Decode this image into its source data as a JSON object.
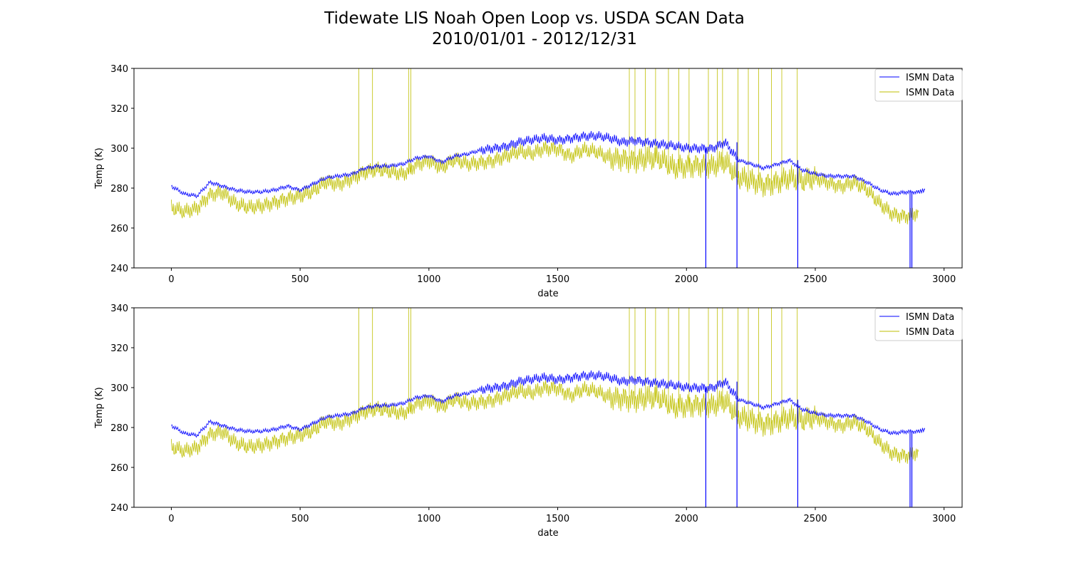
{
  "figure": {
    "title_line1": "Tidewate LIS Noah Open Loop vs. USDA SCAN Data",
    "title_line2": "2010/01/01 - 2012/12/31"
  },
  "colors": {
    "series1": "#0000ff",
    "series2": "#bfbf00"
  },
  "chart_data": [
    {
      "type": "line",
      "title": "",
      "xlabel": "date",
      "ylabel": "Temp (K)",
      "xlim": [
        -145,
        3070
      ],
      "ylim": [
        240,
        340
      ],
      "xticks": [
        0,
        500,
        1000,
        1500,
        2000,
        2500,
        3000
      ],
      "yticks": [
        240,
        260,
        280,
        300,
        320,
        340
      ],
      "legend": {
        "placement": "top-right"
      },
      "series": [
        {
          "name": "ISMN Data",
          "color": "#0000ff",
          "x": [
            0,
            50,
            100,
            150,
            200,
            250,
            300,
            350,
            400,
            450,
            500,
            550,
            600,
            650,
            700,
            750,
            800,
            850,
            900,
            950,
            1000,
            1050,
            1100,
            1150,
            1200,
            1250,
            1300,
            1350,
            1400,
            1450,
            1500,
            1550,
            1600,
            1650,
            1700,
            1750,
            1800,
            1850,
            1900,
            1950,
            2000,
            2050,
            2100,
            2150,
            2200,
            2250,
            2300,
            2350,
            2400,
            2450,
            2500,
            2550,
            2600,
            2650,
            2700,
            2750,
            2800,
            2850,
            2900,
            2925
          ],
          "y": [
            281,
            277,
            276,
            283,
            281,
            279,
            278,
            278,
            279,
            281,
            279,
            282,
            285,
            286,
            287,
            290,
            291,
            291,
            292,
            295,
            296,
            293,
            296,
            297,
            299,
            300,
            301,
            303,
            304,
            305,
            304,
            305,
            306,
            306,
            305,
            303,
            304,
            303,
            302,
            301,
            300,
            300,
            300,
            303,
            294,
            292,
            290,
            292,
            294,
            289,
            287,
            286,
            286,
            286,
            283,
            279,
            277,
            278,
            278,
            279
          ],
          "dropouts": [
            2075,
            2196,
            2432,
            2868,
            2875
          ]
        },
        {
          "name": "ISMN Data",
          "color": "#bfbf00",
          "x": [
            0,
            50,
            100,
            150,
            200,
            250,
            300,
            350,
            400,
            450,
            500,
            550,
            600,
            650,
            700,
            750,
            800,
            850,
            900,
            950,
            1000,
            1050,
            1100,
            1150,
            1200,
            1250,
            1300,
            1350,
            1400,
            1450,
            1500,
            1550,
            1600,
            1650,
            1700,
            1750,
            1800,
            1850,
            1900,
            1950,
            2000,
            2050,
            2100,
            2150,
            2200,
            2250,
            2300,
            2350,
            2400,
            2450,
            2500,
            2550,
            2600,
            2650,
            2700,
            2750,
            2800,
            2850,
            2900
          ],
          "y": [
            270,
            268,
            270,
            277,
            278,
            272,
            270,
            271,
            273,
            275,
            276,
            278,
            283,
            282,
            285,
            288,
            289,
            288,
            287,
            292,
            294,
            290,
            294,
            292,
            293,
            294,
            296,
            298,
            297,
            300,
            300,
            296,
            299,
            298,
            295,
            295,
            294,
            295,
            294,
            290,
            291,
            292,
            291,
            293,
            285,
            284,
            282,
            283,
            285,
            283,
            285,
            283,
            281,
            283,
            279,
            272,
            267,
            266,
            268
          ],
          "spikes_to_top": [
            728,
            781,
            922,
            930,
            1778,
            1800,
            1840,
            1880,
            1930,
            1970,
            2010,
            2085,
            2120,
            2140,
            2200,
            2240,
            2280,
            2330,
            2370,
            2430
          ]
        }
      ]
    },
    {
      "type": "line",
      "title": "",
      "xlabel": "date",
      "ylabel": "Temp (K)",
      "xlim": [
        -145,
        3070
      ],
      "ylim": [
        240,
        340
      ],
      "xticks": [
        0,
        500,
        1000,
        1500,
        2000,
        2500,
        3000
      ],
      "yticks": [
        240,
        260,
        280,
        300,
        320,
        340
      ],
      "legend": {
        "placement": "top-right"
      },
      "series": [
        {
          "name": "ISMN Data",
          "color": "#0000ff",
          "x": [
            0,
            50,
            100,
            150,
            200,
            250,
            300,
            350,
            400,
            450,
            500,
            550,
            600,
            650,
            700,
            750,
            800,
            850,
            900,
            950,
            1000,
            1050,
            1100,
            1150,
            1200,
            1250,
            1300,
            1350,
            1400,
            1450,
            1500,
            1550,
            1600,
            1650,
            1700,
            1750,
            1800,
            1850,
            1900,
            1950,
            2000,
            2050,
            2100,
            2150,
            2200,
            2250,
            2300,
            2350,
            2400,
            2450,
            2500,
            2550,
            2600,
            2650,
            2700,
            2750,
            2800,
            2850,
            2900,
            2925
          ],
          "y": [
            281,
            277,
            276,
            283,
            281,
            279,
            278,
            278,
            279,
            281,
            279,
            282,
            285,
            286,
            287,
            290,
            291,
            291,
            292,
            295,
            296,
            293,
            296,
            297,
            299,
            300,
            301,
            303,
            304,
            305,
            304,
            305,
            306,
            306,
            305,
            303,
            304,
            303,
            302,
            301,
            300,
            300,
            300,
            303,
            294,
            292,
            290,
            292,
            294,
            289,
            287,
            286,
            286,
            286,
            283,
            279,
            277,
            278,
            278,
            279
          ],
          "dropouts": [
            2075,
            2196,
            2432,
            2868,
            2875
          ]
        },
        {
          "name": "ISMN Data",
          "color": "#bfbf00",
          "x": [
            0,
            50,
            100,
            150,
            200,
            250,
            300,
            350,
            400,
            450,
            500,
            550,
            600,
            650,
            700,
            750,
            800,
            850,
            900,
            950,
            1000,
            1050,
            1100,
            1150,
            1200,
            1250,
            1300,
            1350,
            1400,
            1450,
            1500,
            1550,
            1600,
            1650,
            1700,
            1750,
            1800,
            1850,
            1900,
            1950,
            2000,
            2050,
            2100,
            2150,
            2200,
            2250,
            2300,
            2350,
            2400,
            2450,
            2500,
            2550,
            2600,
            2650,
            2700,
            2750,
            2800,
            2850,
            2900
          ],
          "y": [
            270,
            268,
            270,
            277,
            278,
            272,
            270,
            271,
            273,
            275,
            276,
            278,
            283,
            282,
            285,
            288,
            289,
            288,
            287,
            292,
            294,
            290,
            294,
            292,
            293,
            294,
            296,
            298,
            297,
            300,
            300,
            296,
            299,
            298,
            295,
            295,
            294,
            295,
            294,
            290,
            291,
            292,
            291,
            293,
            285,
            284,
            282,
            283,
            285,
            283,
            285,
            283,
            281,
            283,
            279,
            272,
            267,
            266,
            268
          ],
          "spikes_to_top": [
            728,
            781,
            922,
            930,
            1778,
            1800,
            1840,
            1880,
            1930,
            1970,
            2010,
            2085,
            2120,
            2140,
            2200,
            2240,
            2280,
            2330,
            2370,
            2430
          ]
        }
      ]
    }
  ]
}
